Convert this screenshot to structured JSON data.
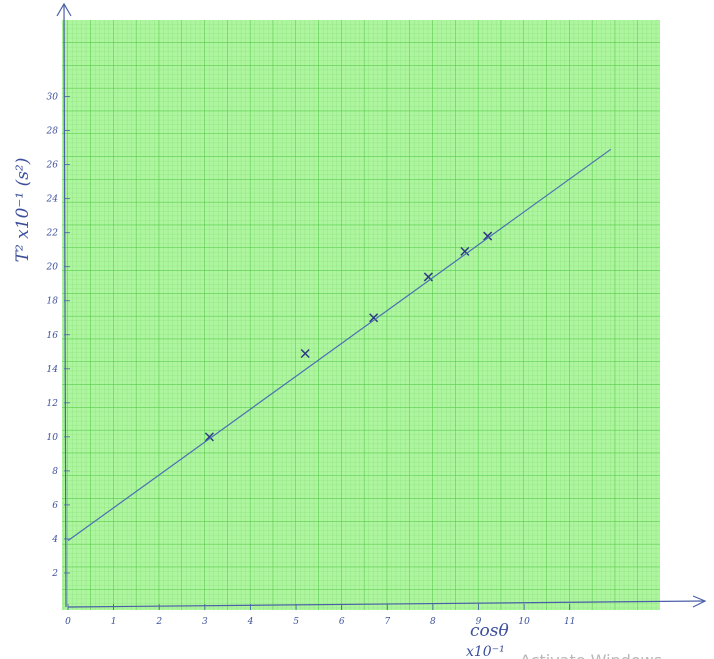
{
  "chart_data": {
    "type": "scatter",
    "x_label": "cosθ",
    "x_label_sub": "x10⁻¹",
    "y_label": "T² x10⁻¹ (s²)",
    "xlim": [
      0,
      13
    ],
    "ylim": [
      0,
      34.5
    ],
    "xticks": [
      0,
      1,
      2,
      3,
      4,
      5,
      6,
      7,
      8,
      9,
      10,
      11
    ],
    "yticks": [
      2,
      4,
      6,
      8,
      10,
      12,
      14,
      16,
      18,
      20,
      22,
      24,
      26,
      28,
      30
    ],
    "grid": true,
    "series": [
      {
        "type": "scatter",
        "color": "#2b3a85",
        "x": [
          3.1,
          5.2,
          6.7,
          7.9,
          8.7,
          9.2
        ],
        "values": [
          10,
          14.9,
          17,
          19.4,
          20.9,
          21.8
        ]
      },
      {
        "type": "line",
        "color": "#4a6fb5",
        "x": [
          0,
          11.9
        ],
        "values": [
          3.9,
          26.9
        ]
      }
    ]
  },
  "watermark": "Activate Windows"
}
